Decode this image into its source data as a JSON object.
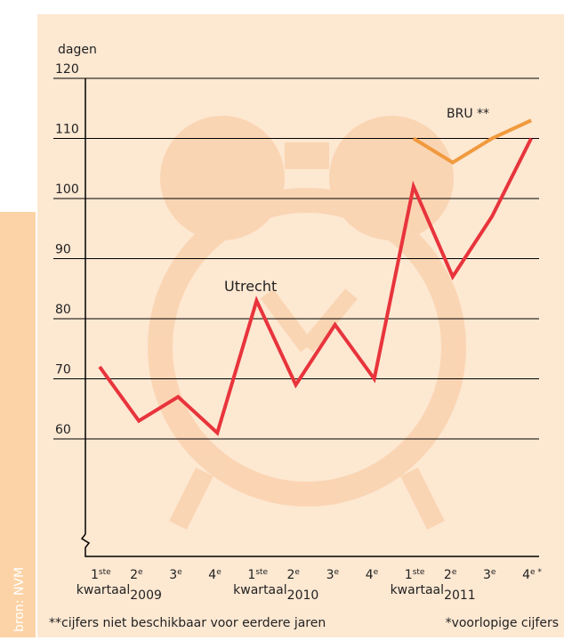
{
  "chart_data": {
    "type": "line",
    "y_axis_label": "dagen",
    "categories": [
      "1ste",
      "2e",
      "3e",
      "4e",
      "1ste",
      "2e",
      "3e",
      "4e",
      "1ste",
      "2e",
      "3e",
      "4e *"
    ],
    "x_groups": [
      {
        "label": "kwartaal",
        "year": "2009"
      },
      {
        "label": "kwartaal",
        "year": "2010"
      },
      {
        "label": "kwartaal",
        "year": "2011"
      }
    ],
    "series": [
      {
        "name": "Utrecht",
        "color": "#e8343c",
        "values": [
          72,
          63,
          67,
          61,
          83,
          69,
          79,
          70,
          102,
          87,
          97,
          110
        ]
      },
      {
        "name": "BRU **",
        "color": "#f09a3e",
        "values": [
          null,
          null,
          null,
          null,
          null,
          null,
          null,
          null,
          110,
          106,
          110,
          113
        ]
      }
    ],
    "ylim": [
      40,
      120
    ],
    "yticks": [
      60,
      70,
      80,
      90,
      100,
      110,
      120
    ],
    "grid": true,
    "footnotes": [
      "**cijfers niet beschikbaar voor eerdere jaren",
      "*voorlopige cijfers"
    ],
    "source": "bron: NVM"
  }
}
